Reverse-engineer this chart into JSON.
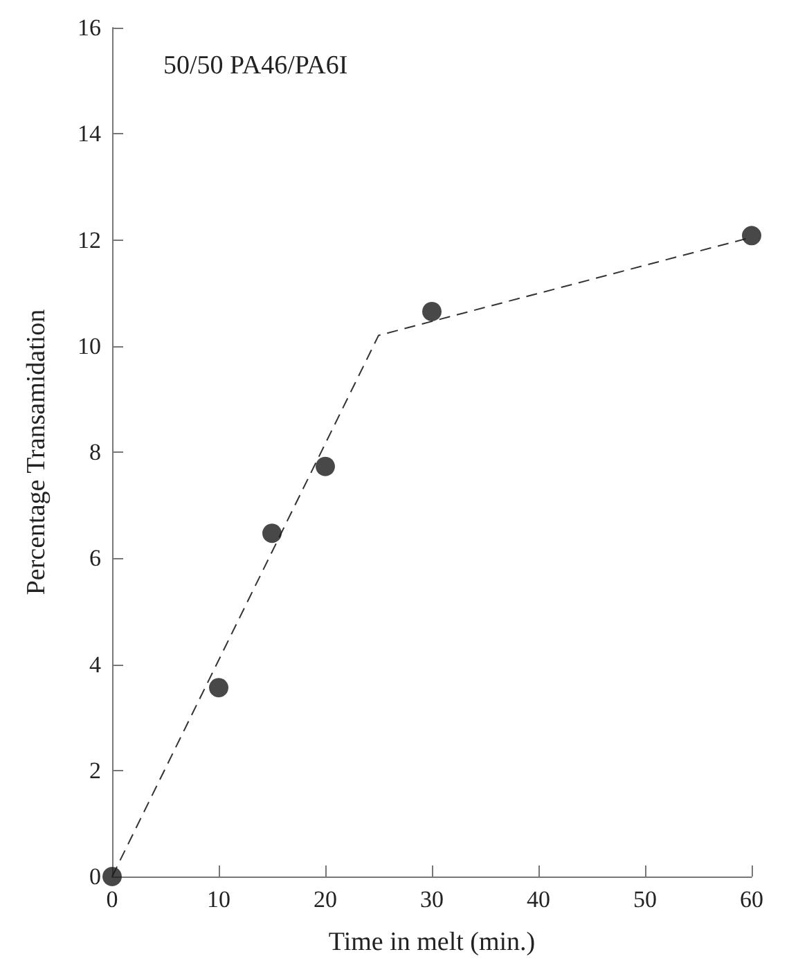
{
  "chart_data": {
    "type": "scatter",
    "xlabel": "Time in melt (min.)",
    "ylabel": "Percentage Transamidation",
    "annotations": [
      "50/50 PA46/PA6I"
    ],
    "xlim": [
      0,
      60
    ],
    "xticks": [
      0,
      10,
      20,
      30,
      40,
      50,
      60
    ],
    "ylim": [
      0,
      16
    ],
    "yticks": [
      0,
      2,
      4,
      6,
      8,
      10,
      12,
      14,
      16
    ],
    "grid": false,
    "series": [
      {
        "color": "#1a1a1a",
        "marker": "circle",
        "x": [
          0,
          10,
          15,
          20,
          30,
          60
        ],
        "values": [
          0,
          3.56,
          6.47,
          7.73,
          10.65,
          12.08
        ]
      },
      {
        "type": "line",
        "color": "#333333",
        "marker": "none",
        "line_style": "dashed",
        "x": [
          0,
          25,
          60
        ],
        "values": [
          0,
          10.2,
          12.05
        ]
      }
    ]
  }
}
